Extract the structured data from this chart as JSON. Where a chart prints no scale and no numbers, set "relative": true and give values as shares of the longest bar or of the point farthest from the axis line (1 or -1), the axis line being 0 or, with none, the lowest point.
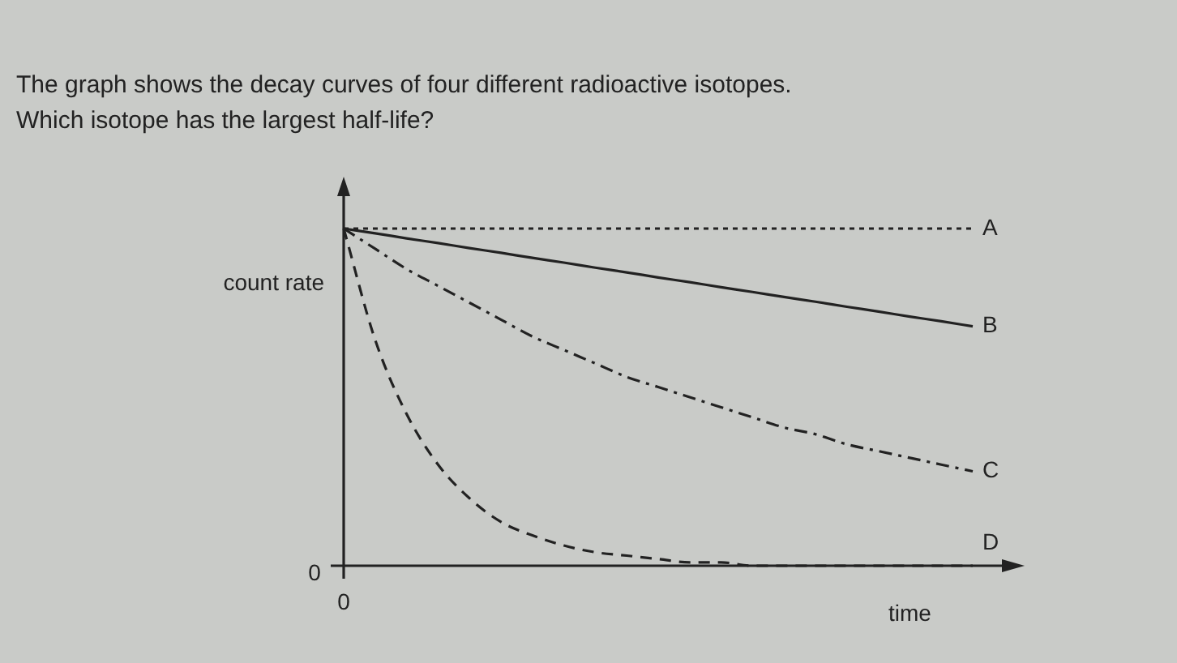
{
  "chart_data": {
    "type": "line",
    "title": "The graph shows the decay curves of four different radioactive isotopes.",
    "subtitle": "Which isotope has the largest half-life?",
    "xlabel": "time",
    "ylabel": "count rate",
    "relative": true,
    "categories": [
      null,
      null,
      null,
      null,
      null,
      null,
      null,
      null,
      null,
      null,
      null,
      null,
      null,
      null,
      null,
      null,
      null,
      null,
      null,
      null,
      null
    ],
    "series": [
      {
        "name": "A",
        "color": "#222222",
        "line_style": "dotted",
        "values": [
          1,
          1,
          1,
          1,
          1,
          1,
          1,
          1,
          1,
          1,
          1,
          1,
          1,
          1,
          1,
          1,
          1,
          1,
          1,
          1,
          1
        ]
      },
      {
        "name": "B",
        "color": "#222222",
        "line_style": "solid",
        "values": [
          1,
          0.986,
          0.971,
          0.957,
          0.942,
          0.928,
          0.913,
          0.899,
          0.884,
          0.87,
          0.855,
          0.841,
          0.826,
          0.812,
          0.797,
          0.783,
          0.768,
          0.754,
          0.739,
          0.725,
          0.71
        ]
      },
      {
        "name": "C",
        "color": "#222222",
        "line_style": "dashdot",
        "values": [
          1,
          0.94,
          0.88,
          0.83,
          0.78,
          0.73,
          0.68,
          0.64,
          0.6,
          0.56,
          0.53,
          0.5,
          0.47,
          0.44,
          0.41,
          0.39,
          0.36,
          0.34,
          0.32,
          0.3,
          0.28
        ]
      },
      {
        "name": "D",
        "color": "#222222",
        "line_style": "dashed",
        "values": [
          1,
          0.67,
          0.45,
          0.3,
          0.2,
          0.13,
          0.09,
          0.06,
          0.04,
          0.03,
          0.02,
          0.01,
          0.01,
          0,
          0,
          0,
          0,
          0,
          0,
          0,
          0
        ]
      }
    ],
    "annotations": [
      "0",
      "0"
    ]
  }
}
